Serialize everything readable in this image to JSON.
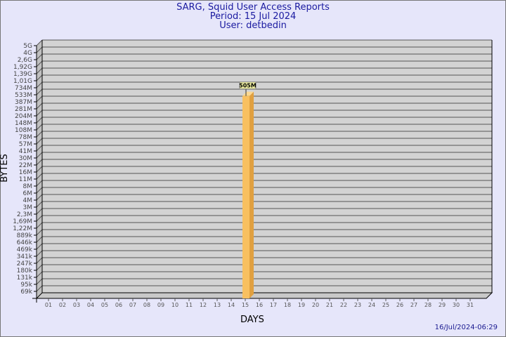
{
  "chart_data": {
    "type": "bar",
    "title": "SARG, Squid User Access Reports",
    "subtitle_period": "Period: 15 Jul 2024",
    "subtitle_user": "User: detbedin",
    "xlabel": "DAYS",
    "ylabel": "BYTES",
    "y_scale": "log",
    "grid": true,
    "categories": [
      "01",
      "02",
      "03",
      "04",
      "05",
      "06",
      "07",
      "08",
      "09",
      "10",
      "11",
      "12",
      "13",
      "14",
      "15",
      "16",
      "17",
      "18",
      "19",
      "20",
      "21",
      "22",
      "23",
      "24",
      "25",
      "26",
      "27",
      "28",
      "29",
      "30",
      "31"
    ],
    "bars": [
      {
        "category": "15",
        "value": 505000000,
        "label": "505M"
      }
    ],
    "y_ticks": [
      {
        "label": "5G",
        "value": 5000000000
      },
      {
        "label": "4G",
        "value": 4000000000
      },
      {
        "label": "2,6G",
        "value": 2600000000
      },
      {
        "label": "1,92G",
        "value": 1920000000
      },
      {
        "label": "1,39G",
        "value": 1390000000
      },
      {
        "label": "1,01G",
        "value": 1010000000
      },
      {
        "label": "734M",
        "value": 734000000
      },
      {
        "label": "533M",
        "value": 533000000
      },
      {
        "label": "387M",
        "value": 387000000
      },
      {
        "label": "281M",
        "value": 281000000
      },
      {
        "label": "204M",
        "value": 204000000
      },
      {
        "label": "148M",
        "value": 148000000
      },
      {
        "label": "108M",
        "value": 108000000
      },
      {
        "label": "78M",
        "value": 78000000
      },
      {
        "label": "57M",
        "value": 57000000
      },
      {
        "label": "41M",
        "value": 41000000
      },
      {
        "label": "30M",
        "value": 30000000
      },
      {
        "label": "22M",
        "value": 22000000
      },
      {
        "label": "16M",
        "value": 16000000
      },
      {
        "label": "11M",
        "value": 11000000
      },
      {
        "label": "8M",
        "value": 8000000
      },
      {
        "label": "6M",
        "value": 6000000
      },
      {
        "label": "4M",
        "value": 4000000
      },
      {
        "label": "3M",
        "value": 3000000
      },
      {
        "label": "2,3M",
        "value": 2300000
      },
      {
        "label": "1,69M",
        "value": 1690000
      },
      {
        "label": "1,22M",
        "value": 1220000
      },
      {
        "label": "889k",
        "value": 889000
      },
      {
        "label": "646k",
        "value": 646000
      },
      {
        "label": "469k",
        "value": 469000
      },
      {
        "label": "341k",
        "value": 341000
      },
      {
        "label": "247k",
        "value": 247000
      },
      {
        "label": "180k",
        "value": 180000
      },
      {
        "label": "131k",
        "value": 131000
      },
      {
        "label": "95k",
        "value": 95000
      },
      {
        "label": "69k",
        "value": 69000
      }
    ],
    "colors": {
      "bar_front": "#f8c060",
      "bar_side": "#e0a040",
      "bar_top": "#fcd890",
      "wall": "#d3d3d3",
      "label_bg": "#f0f0a0"
    }
  },
  "footer": {
    "timestamp": "16/Jul/2024-06:29"
  }
}
